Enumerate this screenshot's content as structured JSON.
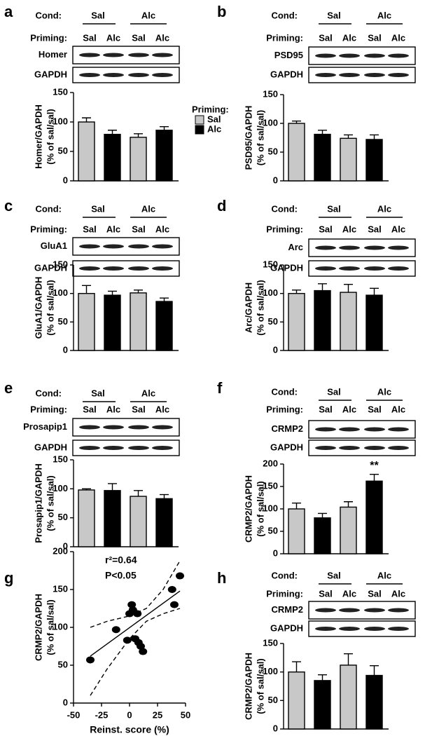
{
  "chart_data": [
    {
      "type": "bar",
      "panel": "a",
      "cond_label": "Cond:",
      "conditions": [
        "Sal",
        "Alc"
      ],
      "priming_label": "Priming:",
      "priming": [
        "Sal",
        "Alc",
        "Sal",
        "Alc"
      ],
      "blots": [
        "Homer",
        "GAPDH"
      ],
      "y_label": [
        "Homer/GAPDH",
        "(% of sal/sal)"
      ],
      "values": [
        100,
        79,
        74,
        86
      ],
      "errors": [
        7,
        7,
        6,
        6
      ],
      "bar_colors": [
        "#c8c8c8",
        "#000000",
        "#c8c8c8",
        "#000000"
      ],
      "ylim": [
        0,
        150
      ],
      "yticks": [
        0,
        50,
        100,
        150
      ],
      "legend": {
        "title": "Priming:",
        "entries": [
          {
            "name": "Sal",
            "color": "#c8c8c8"
          },
          {
            "name": "Alc",
            "color": "#000000"
          }
        ]
      }
    },
    {
      "type": "bar",
      "panel": "b",
      "cond_label": "Cond:",
      "conditions": [
        "Sal",
        "Alc"
      ],
      "priming_label": "Priming:",
      "priming": [
        "Sal",
        "Alc",
        "Sal",
        "Alc"
      ],
      "blots": [
        "PSD95",
        "GAPDH"
      ],
      "y_label": [
        "PSD95/GAPDH",
        "(% of sal/sal)"
      ],
      "values": [
        100,
        81,
        74,
        72
      ],
      "errors": [
        4,
        7,
        6,
        8
      ],
      "bar_colors": [
        "#c8c8c8",
        "#000000",
        "#c8c8c8",
        "#000000"
      ],
      "ylim": [
        0,
        150
      ],
      "yticks": [
        0,
        50,
        100,
        150
      ]
    },
    {
      "type": "bar",
      "panel": "c",
      "cond_label": "Cond:",
      "conditions": [
        "Sal",
        "Alc"
      ],
      "priming_label": "Priming:",
      "priming": [
        "Sal",
        "Alc",
        "Sal",
        "Alc"
      ],
      "blots": [
        "GluA1",
        "GAPDH"
      ],
      "y_label": [
        "GluA1/GAPDH",
        "(% of sal/sal)"
      ],
      "values": [
        100,
        97,
        101,
        86
      ],
      "errors": [
        14,
        7,
        5,
        6
      ],
      "bar_colors": [
        "#c8c8c8",
        "#000000",
        "#c8c8c8",
        "#000000"
      ],
      "ylim": [
        0,
        150
      ],
      "yticks": [
        0,
        50,
        100,
        150
      ]
    },
    {
      "type": "bar",
      "panel": "d",
      "cond_label": "Cond:",
      "conditions": [
        "Sal",
        "Alc"
      ],
      "priming_label": "Priming:",
      "priming": [
        "Sal",
        "Alc",
        "Sal",
        "Alc"
      ],
      "blots": [
        "Arc",
        "GAPDH"
      ],
      "y_label": [
        "Arc/GAPDH",
        "(% of sal/sal)"
      ],
      "values": [
        100,
        105,
        102,
        97
      ],
      "errors": [
        6,
        12,
        14,
        12
      ],
      "bar_colors": [
        "#c8c8c8",
        "#000000",
        "#c8c8c8",
        "#000000"
      ],
      "ylim": [
        0,
        150
      ],
      "yticks": [
        0,
        50,
        100,
        150
      ]
    },
    {
      "type": "bar",
      "panel": "e",
      "cond_label": "Cond:",
      "conditions": [
        "Sal",
        "Alc"
      ],
      "priming_label": "Priming:",
      "priming": [
        "Sal",
        "Alc",
        "Sal",
        "Alc"
      ],
      "blots": [
        "Prosapip1",
        "GAPDH"
      ],
      "y_label": [
        "Prosapip1/GAPDH",
        "(% of sal/sal)"
      ],
      "values": [
        98,
        97,
        87,
        83
      ],
      "errors": [
        2,
        12,
        10,
        7
      ],
      "bar_colors": [
        "#c8c8c8",
        "#000000",
        "#c8c8c8",
        "#000000"
      ],
      "ylim": [
        0,
        150
      ],
      "yticks": [
        0,
        50,
        100,
        150
      ]
    },
    {
      "type": "bar",
      "panel": "f",
      "cond_label": "Cond:",
      "conditions": [
        "Sal",
        "Alc"
      ],
      "priming_label": "Priming:",
      "priming": [
        "Sal",
        "Alc",
        "Sal",
        "Alc"
      ],
      "blots": [
        "CRMP2",
        "GAPDH"
      ],
      "y_label": [
        "CRMP2/GAPDH",
        "(% of sal/sal)"
      ],
      "values": [
        100,
        80,
        104,
        162
      ],
      "errors": [
        13,
        10,
        12,
        15
      ],
      "significance": [
        null,
        null,
        null,
        "**"
      ],
      "bar_colors": [
        "#c8c8c8",
        "#000000",
        "#c8c8c8",
        "#000000"
      ],
      "ylim": [
        0,
        200
      ],
      "yticks": [
        0,
        50,
        100,
        150,
        200
      ]
    },
    {
      "type": "scatter",
      "panel": "g",
      "annotations": [
        "r²=0.64",
        "P<0.05"
      ],
      "x_label": "Reinst. score (%)",
      "y_label": [
        "CRMP2/GAPDH",
        "(% of sal/sal)"
      ],
      "x": [
        -35,
        -12,
        -2,
        0,
        2,
        3,
        5,
        7,
        8,
        10,
        12,
        38,
        40,
        45
      ],
      "y": [
        57,
        97,
        83,
        118,
        130,
        123,
        85,
        118,
        80,
        75,
        68,
        150,
        130,
        168
      ],
      "color": "#000000",
      "lines": [
        {
          "x": [
            -35,
            45
          ],
          "y": [
            62,
            148
          ],
          "dashed": false
        },
        {
          "x": [
            -35,
            -20,
            0,
            15,
            30,
            45
          ],
          "y": [
            100,
            108,
            115,
            125,
            150,
            188
          ],
          "dashed": true
        },
        {
          "x": [
            -35,
            -20,
            0,
            15,
            30,
            45
          ],
          "y": [
            10,
            45,
            85,
            108,
            118,
            125
          ],
          "dashed": true
        }
      ],
      "xlim": [
        -50,
        50
      ],
      "xticks": [
        -50,
        -25,
        0,
        25,
        50
      ],
      "ylim": [
        0,
        200
      ],
      "yticks": [
        0,
        50,
        100,
        150,
        200
      ]
    },
    {
      "type": "bar",
      "panel": "h",
      "cond_label": "Cond:",
      "conditions": [
        "Sal",
        "Alc"
      ],
      "priming_label": "Priming:",
      "priming": [
        "Sal",
        "Alc",
        "Sal",
        "Alc"
      ],
      "blots": [
        "CRMP2",
        "GAPDH"
      ],
      "y_label": [
        "CRMP2/GAPDH",
        "(% of sal/sal)"
      ],
      "values": [
        100,
        85,
        112,
        94
      ],
      "errors": [
        18,
        10,
        20,
        17
      ],
      "bar_colors": [
        "#c8c8c8",
        "#000000",
        "#c8c8c8",
        "#000000"
      ],
      "ylim": [
        0,
        150
      ],
      "yticks": [
        0,
        50,
        100,
        150
      ]
    }
  ]
}
